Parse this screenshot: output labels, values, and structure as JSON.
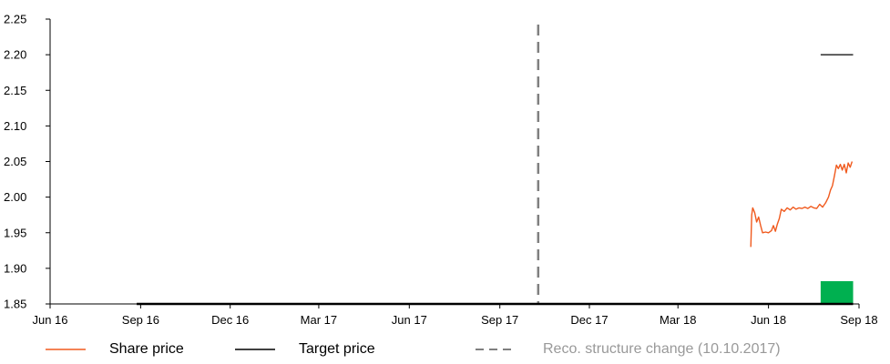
{
  "colors": {
    "share_price": "#F05A1E",
    "target_price": "#000000",
    "reco_line": "#808080",
    "recommendation_band": "#00B050",
    "axis": "#000000"
  },
  "chart_data": {
    "type": "line",
    "x_axis": {
      "type": "date",
      "range": [
        "2016-06-01",
        "2018-09-01"
      ],
      "tick_labels": [
        "Jun 16",
        "Sep 16",
        "Dec 16",
        "Mar 17",
        "Jun 17",
        "Sep 17",
        "Dec 17",
        "Mar 18",
        "Jun 18",
        "Sep 18"
      ],
      "tick_dates": [
        "2016-06-01",
        "2016-09-01",
        "2016-12-01",
        "2017-03-01",
        "2017-06-01",
        "2017-09-01",
        "2017-12-01",
        "2018-03-01",
        "2018-06-01",
        "2018-09-01"
      ]
    },
    "y_axis": {
      "range": [
        1.85,
        2.25
      ],
      "tick_labels": [
        "1.85",
        "1.90",
        "1.95",
        "2.00",
        "2.05",
        "2.10",
        "2.15",
        "2.20",
        "2.25"
      ],
      "tick_values": [
        1.85,
        1.9,
        1.95,
        2.0,
        2.05,
        2.1,
        2.15,
        2.2,
        2.25
      ]
    },
    "grid": false,
    "legend_placement": "bottom",
    "series": [
      {
        "name": "Share price",
        "style": "solid",
        "points": [
          [
            "2018-05-14",
            1.93
          ],
          [
            "2018-05-15",
            1.975
          ],
          [
            "2018-05-16",
            1.985
          ],
          [
            "2018-05-18",
            1.978
          ],
          [
            "2018-05-20",
            1.965
          ],
          [
            "2018-05-22",
            1.972
          ],
          [
            "2018-05-24",
            1.96
          ],
          [
            "2018-05-26",
            1.95
          ],
          [
            "2018-05-29",
            1.951
          ],
          [
            "2018-06-01",
            1.95
          ],
          [
            "2018-06-04",
            1.953
          ],
          [
            "2018-06-06",
            1.96
          ],
          [
            "2018-06-08",
            1.952
          ],
          [
            "2018-06-10",
            1.962
          ],
          [
            "2018-06-12",
            1.97
          ],
          [
            "2018-06-14",
            1.983
          ],
          [
            "2018-06-17",
            1.98
          ],
          [
            "2018-06-20",
            1.985
          ],
          [
            "2018-06-23",
            1.982
          ],
          [
            "2018-06-26",
            1.986
          ],
          [
            "2018-06-29",
            1.983
          ],
          [
            "2018-07-02",
            1.985
          ],
          [
            "2018-07-05",
            1.984
          ],
          [
            "2018-07-08",
            1.986
          ],
          [
            "2018-07-11",
            1.984
          ],
          [
            "2018-07-14",
            1.987
          ],
          [
            "2018-07-17",
            1.985
          ],
          [
            "2018-07-20",
            1.984
          ],
          [
            "2018-07-23",
            1.99
          ],
          [
            "2018-07-26",
            1.986
          ],
          [
            "2018-07-29",
            1.992
          ],
          [
            "2018-08-01",
            2.0
          ],
          [
            "2018-08-03",
            2.01
          ],
          [
            "2018-08-05",
            2.016
          ],
          [
            "2018-08-07",
            2.03
          ],
          [
            "2018-08-09",
            2.045
          ],
          [
            "2018-08-11",
            2.04
          ],
          [
            "2018-08-13",
            2.046
          ],
          [
            "2018-08-15",
            2.038
          ],
          [
            "2018-08-17",
            2.046
          ],
          [
            "2018-08-19",
            2.034
          ],
          [
            "2018-08-21",
            2.048
          ],
          [
            "2018-08-23",
            2.042
          ],
          [
            "2018-08-25",
            2.05
          ]
        ]
      },
      {
        "name": "Target price",
        "style": "solid",
        "segments": [
          {
            "from": "2016-08-28",
            "to": "2018-08-26",
            "value": 1.85
          },
          {
            "from": "2018-07-24",
            "to": "2018-08-26",
            "value": 2.2
          }
        ]
      }
    ],
    "reco_structure_change": {
      "label": "Reco. structure change (10.10.2017)",
      "date": "2017-10-10"
    },
    "recommendation_band": {
      "from": "2018-07-24",
      "to": "2018-08-26",
      "range": [
        1.85,
        1.882
      ]
    }
  },
  "legend": {
    "share_price": "Share price",
    "target_price": "Target price",
    "reco_change": "Reco. structure change (10.10.2017)"
  }
}
